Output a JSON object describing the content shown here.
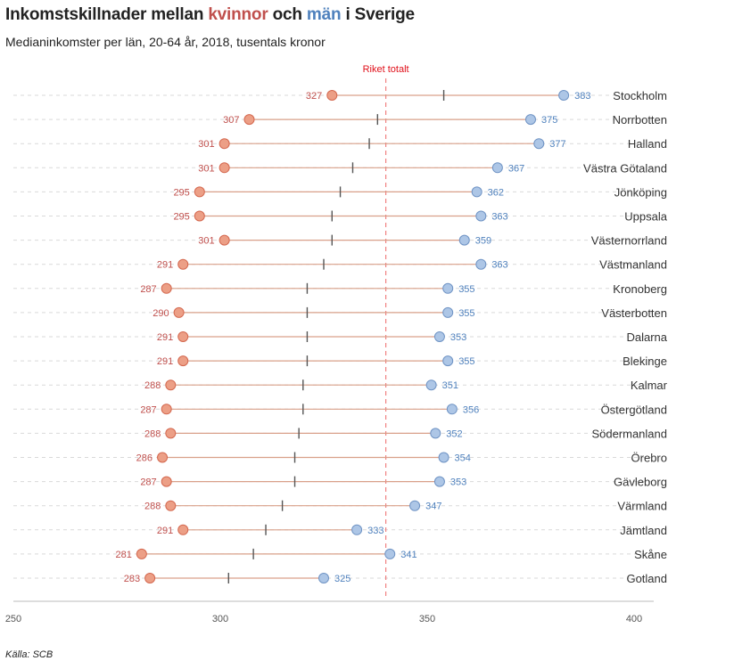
{
  "header": {
    "title_part1": "Inkomstskillnader mellan ",
    "title_women": "kvinnor",
    "title_part2": " och ",
    "title_men": "män",
    "title_part3": " i Sverige",
    "subtitle": "Medianinkomster per län, 20-64 år, 2018, tusentals kronor"
  },
  "footer": {
    "source": "Källa: SCB"
  },
  "colors": {
    "women": "#c0504d",
    "women_dot": "#ec9f86",
    "men": "#4f81bd",
    "men_dot": "#adc6e6",
    "connector": "#d9a08a",
    "reference": "#f08080",
    "avg_tick": "#555555"
  },
  "chart_data": {
    "type": "dumbbell",
    "title": "Inkomstskillnader mellan kvinnor och män i Sverige",
    "subtitle": "Medianinkomster per län, 20-64 år, 2018, tusentals kronor",
    "xlim": [
      250,
      400
    ],
    "xticks": [
      250,
      300,
      350,
      400
    ],
    "reference": {
      "label": "Riket totalt",
      "value": 340
    },
    "series": [
      {
        "name": "kvinnor",
        "key": "women"
      },
      {
        "name": "män",
        "key": "men"
      }
    ],
    "rows": [
      {
        "region": "Stockholm",
        "women": 327,
        "men": 383,
        "avg": 354
      },
      {
        "region": "Norrbotten",
        "women": 307,
        "men": 375,
        "avg": 338
      },
      {
        "region": "Halland",
        "women": 301,
        "men": 377,
        "avg": 336
      },
      {
        "region": "Västra Götaland",
        "women": 301,
        "men": 367,
        "avg": 332
      },
      {
        "region": "Jönköping",
        "women": 295,
        "men": 362,
        "avg": 329
      },
      {
        "region": "Uppsala",
        "women": 295,
        "men": 363,
        "avg": 327
      },
      {
        "region": "Västernorrland",
        "women": 301,
        "men": 359,
        "avg": 327
      },
      {
        "region": "Västmanland",
        "women": 291,
        "men": 363,
        "avg": 325
      },
      {
        "region": "Kronoberg",
        "women": 287,
        "men": 355,
        "avg": 321
      },
      {
        "region": "Västerbotten",
        "women": 290,
        "men": 355,
        "avg": 321
      },
      {
        "region": "Dalarna",
        "women": 291,
        "men": 353,
        "avg": 321
      },
      {
        "region": "Blekinge",
        "women": 291,
        "men": 355,
        "avg": 321
      },
      {
        "region": "Kalmar",
        "women": 288,
        "men": 351,
        "avg": 320
      },
      {
        "region": "Östergötland",
        "women": 287,
        "men": 356,
        "avg": 320
      },
      {
        "region": "Södermanland",
        "women": 288,
        "men": 352,
        "avg": 319
      },
      {
        "region": "Örebro",
        "women": 286,
        "men": 354,
        "avg": 318
      },
      {
        "region": "Gävleborg",
        "women": 287,
        "men": 353,
        "avg": 318
      },
      {
        "region": "Värmland",
        "women": 288,
        "men": 347,
        "avg": 315
      },
      {
        "region": "Jämtland",
        "women": 291,
        "men": 333,
        "avg": 311
      },
      {
        "region": "Skåne",
        "women": 281,
        "men": 341,
        "avg": 308
      },
      {
        "region": "Gotland",
        "women": 283,
        "men": 325,
        "avg": 302
      }
    ]
  }
}
